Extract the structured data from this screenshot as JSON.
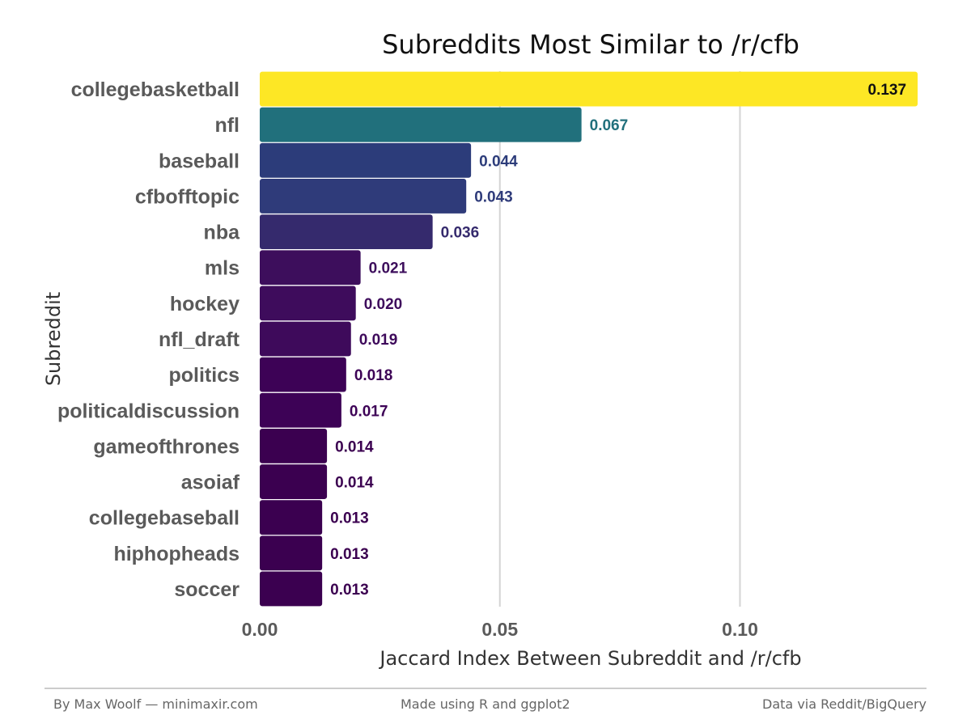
{
  "chart_data": {
    "type": "bar",
    "orientation": "horizontal",
    "title": "Subreddits Most Similar to /r/cfb",
    "xlabel": "Jaccard Index Between Subreddit and /r/cfb",
    "ylabel": "Subreddit",
    "categories": [
      "collegebasketball",
      "nfl",
      "baseball",
      "cfbofftopic",
      "nba",
      "mls",
      "hockey",
      "nfl_draft",
      "politics",
      "politicaldiscussion",
      "gameofthrones",
      "asoiaf",
      "collegebaseball",
      "hiphopheads",
      "soccer"
    ],
    "values": [
      0.137,
      0.067,
      0.044,
      0.043,
      0.036,
      0.021,
      0.02,
      0.019,
      0.018,
      0.017,
      0.014,
      0.014,
      0.013,
      0.013,
      0.013
    ],
    "value_labels": [
      "0.137",
      "0.067",
      "0.044",
      "0.043",
      "0.036",
      "0.021",
      "0.020",
      "0.019",
      "0.018",
      "0.017",
      "0.014",
      "0.014",
      "0.013",
      "0.013",
      "0.013"
    ],
    "bar_colors": [
      "#fde725",
      "#21707c",
      "#2c3c7a",
      "#2f3b7a",
      "#352a6d",
      "#3d0e5c",
      "#3e0c5c",
      "#3e0a5b",
      "#3d0256",
      "#3d0256",
      "#3b0050",
      "#3b0050",
      "#3b0050",
      "#3b0050",
      "#3b0050"
    ],
    "value_label_colors": [
      "#111111",
      "#21707c",
      "#2c3c7a",
      "#2f3b7a",
      "#352a6d",
      "#3d0e5c",
      "#3e0c5c",
      "#3e0a5b",
      "#3d0256",
      "#3d0256",
      "#3b0050",
      "#3b0050",
      "#3b0050",
      "#3b0050",
      "#3b0050"
    ],
    "x_ticks": [
      0.0,
      0.05,
      0.1
    ],
    "x_tick_labels": [
      "0.00",
      "0.05",
      "0.10"
    ],
    "xlim": [
      0,
      0.138
    ],
    "grid": true,
    "legend": "none"
  },
  "footer": {
    "left": "By Max Woolf — minimaxir.com",
    "center": "Made using R and ggplot2",
    "right": "Data via Reddit/BigQuery"
  }
}
